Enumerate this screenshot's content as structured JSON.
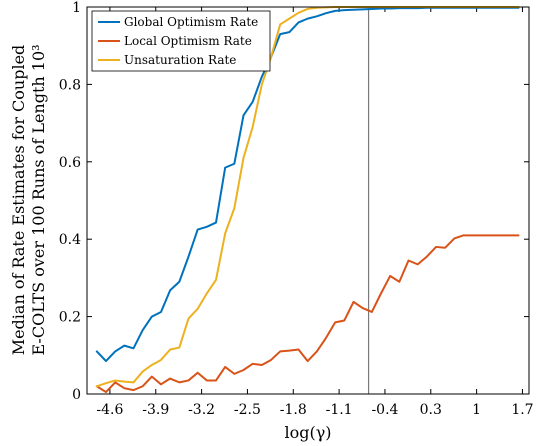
{
  "chart_data": {
    "type": "line",
    "title": "",
    "xlabel": "log(γ)",
    "ylabel_lines": [
      "Median of Rate Estimates for Coupled",
      "E-COLTS over 100 Runs of Length 10³"
    ],
    "xlim": [
      -4.95,
      1.8
    ],
    "ylim": [
      0,
      1
    ],
    "xticks": [
      -4.6,
      -3.9,
      -3.2,
      -2.5,
      -1.8,
      -1.1,
      -0.4,
      0.3,
      1,
      1.7
    ],
    "xtick_labels": [
      "-4.6",
      "-3.9",
      "-3.2",
      "-2.5",
      "-1.8",
      "-1.1",
      "-0.4",
      "0.3",
      "1",
      "1.7"
    ],
    "yticks": [
      0,
      0.2,
      0.4,
      0.6,
      0.8,
      1
    ],
    "ytick_labels": [
      "0",
      "0.2",
      "0.4",
      "0.6",
      "0.8",
      "1"
    ],
    "grid": false,
    "legend_position": "top-left",
    "vertical_line_x": -0.65,
    "x": [
      -4.8,
      -4.66,
      -4.52,
      -4.38,
      -4.24,
      -4.1,
      -3.96,
      -3.82,
      -3.68,
      -3.54,
      -3.4,
      -3.26,
      -3.12,
      -2.98,
      -2.84,
      -2.7,
      -2.56,
      -2.42,
      -2.28,
      -2.14,
      -2.0,
      -1.86,
      -1.72,
      -1.58,
      -1.44,
      -1.3,
      -1.16,
      -1.02,
      -0.88,
      -0.74,
      -0.6,
      -0.46,
      -0.32,
      -0.18,
      -0.04,
      0.1,
      0.24,
      0.38,
      0.52,
      0.66,
      0.8,
      0.94,
      1.08,
      1.22,
      1.36,
      1.5,
      1.64
    ],
    "series": [
      {
        "name": "Global Optimism Rate",
        "color": "#0072BD",
        "values": [
          0.11,
          0.085,
          0.11,
          0.125,
          0.118,
          0.165,
          0.2,
          0.212,
          0.268,
          0.29,
          0.355,
          0.425,
          0.432,
          0.443,
          0.585,
          0.595,
          0.72,
          0.755,
          0.82,
          0.87,
          0.93,
          0.935,
          0.96,
          0.97,
          0.976,
          0.984,
          0.99,
          0.992,
          0.993,
          0.994,
          0.995,
          0.996,
          0.996,
          0.997,
          0.997,
          0.997,
          0.998,
          0.998,
          0.998,
          0.998,
          0.998,
          0.998,
          0.998,
          0.998,
          0.998,
          0.998,
          0.998
        ]
      },
      {
        "name": "Local Optimism Rate",
        "color": "#D95319",
        "values": [
          0.02,
          0.005,
          0.03,
          0.015,
          0.01,
          0.02,
          0.045,
          0.025,
          0.04,
          0.03,
          0.035,
          0.055,
          0.035,
          0.035,
          0.07,
          0.052,
          0.062,
          0.078,
          0.075,
          0.088,
          0.11,
          0.112,
          0.115,
          0.085,
          0.11,
          0.145,
          0.185,
          0.19,
          0.238,
          0.222,
          0.212,
          0.26,
          0.305,
          0.29,
          0.345,
          0.335,
          0.355,
          0.38,
          0.378,
          0.402,
          0.41,
          0.41,
          0.41,
          0.41,
          0.41,
          0.41,
          0.41
        ]
      },
      {
        "name": "Unsaturation Rate",
        "color": "#EDB120",
        "values": [
          0.02,
          0.028,
          0.035,
          0.032,
          0.03,
          0.058,
          0.075,
          0.088,
          0.115,
          0.12,
          0.195,
          0.22,
          0.26,
          0.295,
          0.415,
          0.48,
          0.61,
          0.69,
          0.8,
          0.87,
          0.955,
          0.97,
          0.985,
          0.995,
          0.998,
          0.999,
          1.0,
          1.0,
          1.0,
          1.0,
          1.0,
          1.0,
          1.0,
          1.0,
          1.0,
          1.0,
          1.0,
          1.0,
          1.0,
          1.0,
          1.0,
          1.0,
          1.0,
          1.0,
          1.0,
          1.0,
          1.0
        ]
      }
    ]
  }
}
